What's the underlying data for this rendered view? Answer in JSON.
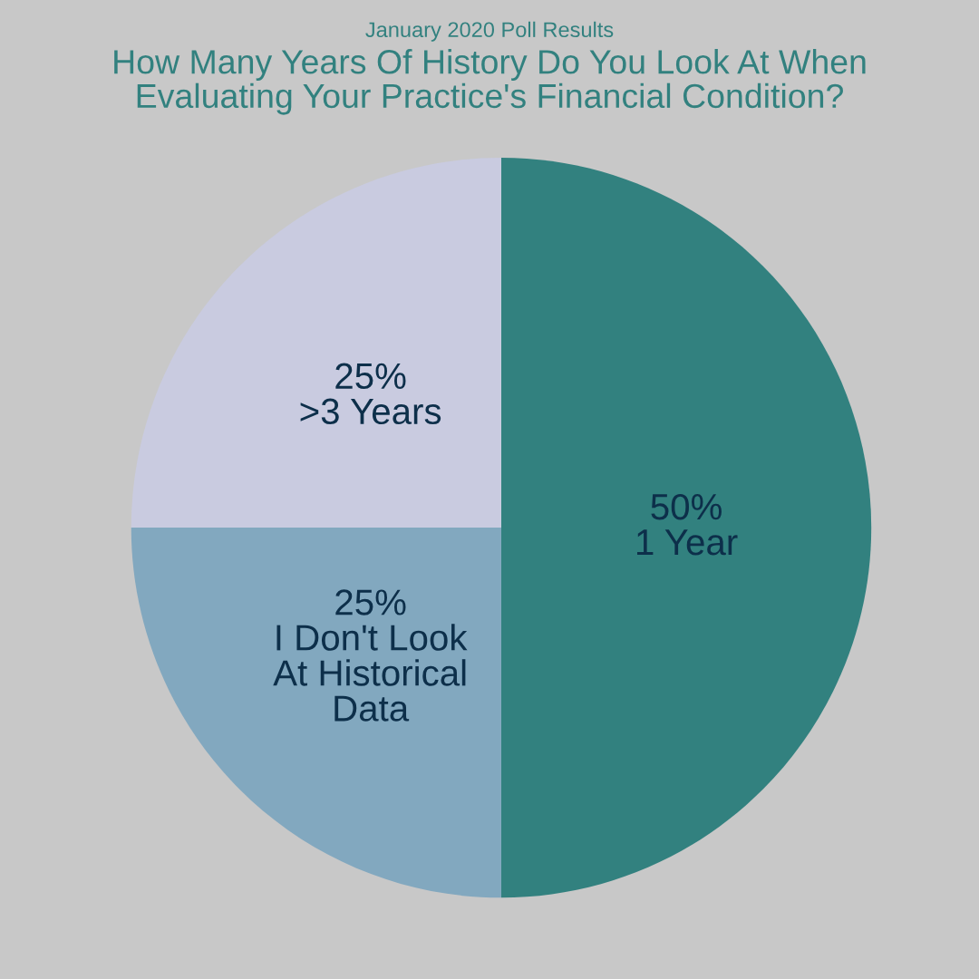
{
  "chart_data": {
    "type": "pie",
    "subtitle": "January 2020 Poll Results",
    "title": "How Many Years Of History Do You Look At When Evaluating Your Practice's Financial Condition?",
    "categories": [
      "1 Year",
      "I Don't Look At Historical Data",
      ">3 Years"
    ],
    "values": [
      50,
      25,
      25
    ],
    "value_labels": [
      "50%",
      "25%",
      "25%"
    ],
    "colors": [
      "#32817f",
      "#82a8bf",
      "#c9cbe0"
    ],
    "legend": false
  }
}
